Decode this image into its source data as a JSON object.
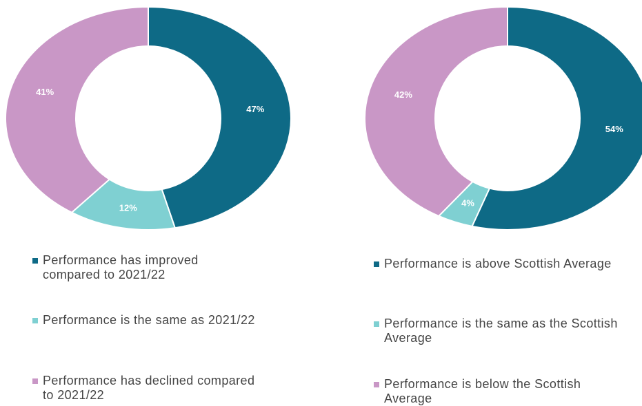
{
  "chart_data": [
    {
      "type": "pie",
      "donut": true,
      "categories": [
        "Performance has improved compared to 2021/22",
        "Performance is the same as 2021/22",
        "Performance has declined compared to 2021/22"
      ],
      "values": [
        47,
        12,
        41
      ],
      "value_labels": [
        "47%",
        "12%",
        "41%"
      ],
      "colors": [
        "#0e6a86",
        "#7fd0d2",
        "#c997c6"
      ]
    },
    {
      "type": "pie",
      "donut": true,
      "categories": [
        "Performance is above Scottish Average",
        "Performance is the same as the Scottish Average",
        "Performance is below the Scottish Average"
      ],
      "values": [
        54,
        4,
        42
      ],
      "value_labels": [
        "54%",
        "4%",
        "42%"
      ],
      "colors": [
        "#0e6a86",
        "#7fd0d2",
        "#c997c6"
      ]
    }
  ]
}
